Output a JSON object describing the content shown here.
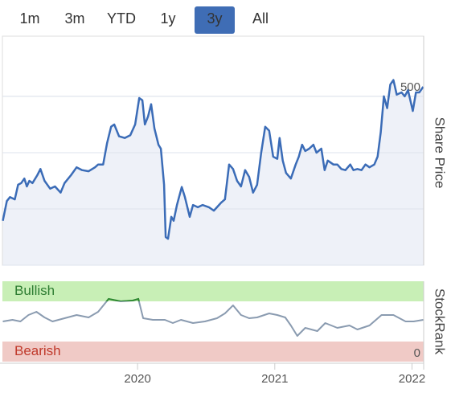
{
  "range_buttons": [
    "1m",
    "3m",
    "YTD",
    "1y",
    "3y",
    "All"
  ],
  "selected_button": 4,
  "chart_data": [
    {
      "type": "line",
      "axis_label": "Share Price",
      "color": "#3b6cb7",
      "area_color": "#eef1f8",
      "grid": true,
      "xlim": [
        2019.015,
        2022.085
      ],
      "ylim": [
        200,
        607
      ],
      "yticks": [
        200,
        300,
        400,
        500
      ],
      "x": [
        2019.018,
        2019.047,
        2019.07,
        2019.105,
        2019.129,
        2019.152,
        2019.175,
        2019.193,
        2019.211,
        2019.234,
        2019.269,
        2019.292,
        2019.322,
        2019.363,
        2019.398,
        2019.439,
        2019.468,
        2019.515,
        2019.556,
        2019.596,
        2019.643,
        2019.69,
        2019.713,
        2019.749,
        2019.778,
        2019.807,
        2019.83,
        2019.865,
        2019.906,
        2019.947,
        2019.982,
        2020.012,
        2020.035,
        2020.053,
        2020.076,
        2020.099,
        2020.123,
        2020.152,
        2020.17,
        2020.193,
        2020.205,
        2020.222,
        2020.246,
        2020.263,
        2020.287,
        2020.322,
        2020.345,
        2020.38,
        2020.404,
        2020.439,
        2020.474,
        2020.52,
        2020.556,
        2020.579,
        2020.608,
        2020.637,
        2020.667,
        2020.696,
        2020.725,
        2020.754,
        2020.784,
        2020.813,
        2020.842,
        2020.871,
        2020.901,
        2020.93,
        2020.959,
        2020.988,
        2021.018,
        2021.035,
        2021.058,
        2021.082,
        2021.117,
        2021.152,
        2021.175,
        2021.199,
        2021.222,
        2021.251,
        2021.281,
        2021.304,
        2021.339,
        2021.363,
        2021.386,
        2021.427,
        2021.456,
        2021.485,
        2021.515,
        2021.55,
        2021.573,
        2021.602,
        2021.632,
        2021.661,
        2021.69,
        2021.725,
        2021.749,
        2021.772,
        2021.795,
        2021.819,
        2021.842,
        2021.865,
        2021.889,
        2021.924,
        2021.947,
        2021.971,
        2022.006,
        2022.029,
        2022.053,
        2022.082
      ],
      "values": [
        279,
        314,
        321,
        317,
        343,
        346,
        354,
        340,
        350,
        346,
        360,
        371,
        350,
        336,
        340,
        329,
        346,
        360,
        374,
        369,
        367,
        374,
        379,
        379,
        417,
        446,
        450,
        429,
        426,
        431,
        450,
        497,
        493,
        450,
        464,
        486,
        443,
        414,
        407,
        343,
        250,
        247,
        286,
        279,
        307,
        339,
        321,
        286,
        307,
        303,
        307,
        303,
        297,
        303,
        311,
        317,
        379,
        371,
        350,
        340,
        369,
        357,
        329,
        343,
        400,
        446,
        439,
        393,
        389,
        426,
        386,
        364,
        354,
        379,
        393,
        414,
        403,
        407,
        414,
        400,
        407,
        369,
        386,
        379,
        379,
        371,
        369,
        379,
        369,
        371,
        369,
        379,
        374,
        379,
        393,
        436,
        500,
        479,
        521,
        529,
        503,
        507,
        500,
        511,
        474,
        507,
        507,
        517
      ]
    },
    {
      "type": "line",
      "axis_label": "StockRank",
      "color": "#8a9bb0",
      "highlight_color": "#2e8b2e",
      "xlim": [
        2019.015,
        2022.085
      ],
      "xticks": [
        2020,
        2021,
        2022
      ],
      "ylim": [
        0,
        100
      ],
      "yticks": [
        0
      ],
      "bands": [
        {
          "label": "Bullish",
          "from": 75,
          "to": 100,
          "color": "#c8efb6",
          "text_color": "#2e7d32"
        },
        {
          "label": "Bearish",
          "from": 0,
          "to": 25,
          "color": "#f0cac6",
          "text_color": "#c0392b"
        }
      ],
      "x": [
        2019.018,
        2019.088,
        2019.146,
        2019.205,
        2019.263,
        2019.322,
        2019.38,
        2019.468,
        2019.556,
        2019.643,
        2019.713,
        2019.789,
        2019.877,
        2019.965,
        2020.006,
        2020.041,
        2020.111,
        2020.199,
        2020.257,
        2020.316,
        2020.404,
        2020.491,
        2020.579,
        2020.637,
        2020.696,
        2020.754,
        2020.813,
        2020.871,
        2020.959,
        2021.018,
        2021.076,
        2021.117,
        2021.164,
        2021.222,
        2021.31,
        2021.368,
        2021.456,
        2021.544,
        2021.602,
        2021.69,
        2021.778,
        2021.865,
        2021.953,
        2022.012,
        2022.082
      ],
      "values": [
        50,
        52,
        50,
        58,
        62,
        55,
        50,
        54,
        58,
        55,
        62,
        78,
        75,
        76,
        78,
        54,
        52,
        52,
        48,
        52,
        48,
        50,
        54,
        60,
        70,
        58,
        54,
        55,
        60,
        58,
        55,
        45,
        32,
        42,
        38,
        48,
        42,
        45,
        40,
        45,
        58,
        58,
        50,
        50,
        52
      ]
    }
  ]
}
